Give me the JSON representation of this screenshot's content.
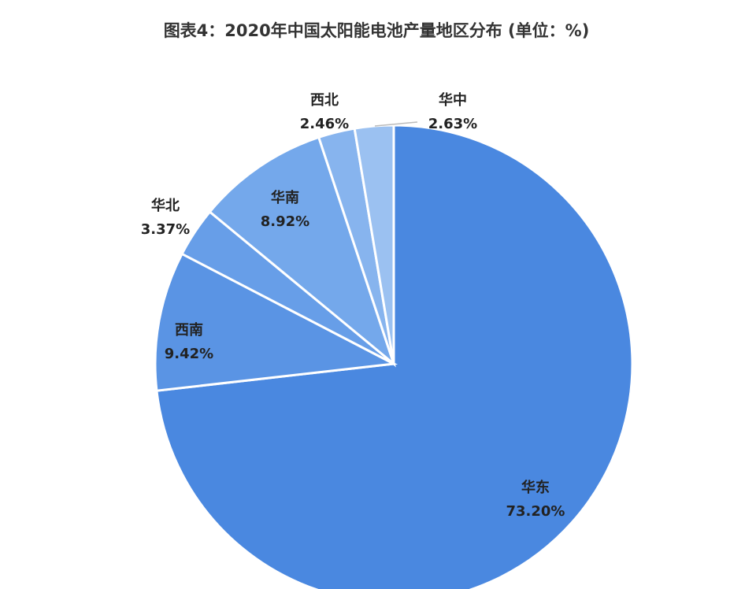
{
  "chart_data": {
    "type": "pie",
    "title": "图表4：2020年中国太阳能电池产量地区分布 (单位：%)",
    "categories": [
      "华东",
      "西南",
      "华北",
      "华南",
      "西北",
      "华中"
    ],
    "values": [
      73.2,
      9.42,
      3.37,
      8.92,
      2.46,
      2.63
    ],
    "value_labels": [
      "73.20%",
      "9.42%",
      "3.37%",
      "8.92%",
      "2.46%",
      "2.63%"
    ],
    "colors": [
      "#4a88e0",
      "#5a94e4",
      "#679ee8",
      "#74a8eb",
      "#87b4ee",
      "#9bc1f1"
    ]
  }
}
